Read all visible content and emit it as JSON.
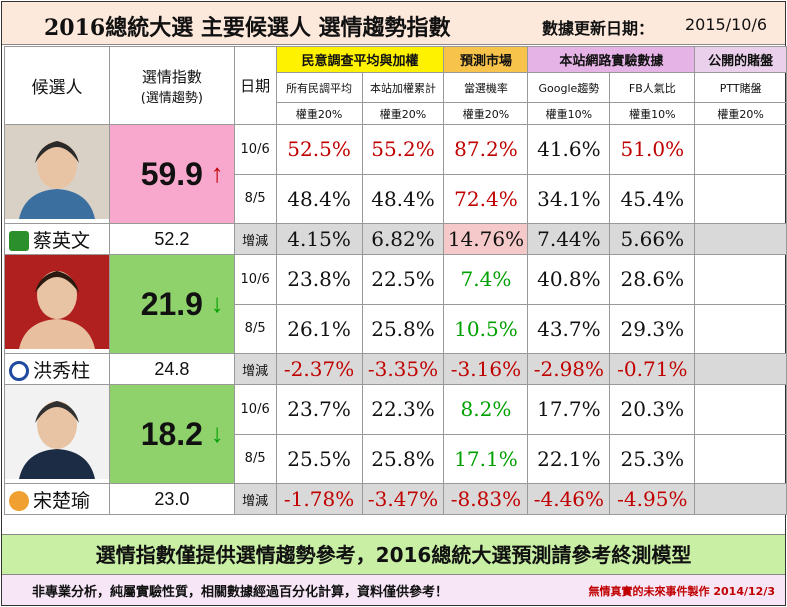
{
  "title": "2016總統大選 主要候選人  選情趨勢指數",
  "update_label": "數據更新日期：",
  "update_date": "2015/10/6",
  "headers": {
    "candidate": "候選人",
    "index": "選情指數",
    "index_sub": "(選情趨勢)",
    "date": "日期",
    "groups": [
      {
        "label": "民意調查平均與加權"
      },
      {
        "label": "預測市場"
      },
      {
        "label": "本站網路實驗數據"
      },
      {
        "label": "公開的賭盤"
      }
    ],
    "columns": [
      "所有民調平均",
      "本站加權累計",
      "當選機率",
      "Google趨勢",
      "FB人氣比",
      "PTT賭盤"
    ],
    "weights": [
      "權重20%",
      "權重20%",
      "權重20%",
      "權重10%",
      "權重10%",
      "權重20%"
    ]
  },
  "chart_data": {
    "type": "table",
    "title": "2016總統大選 主要候選人  選情趨勢指數",
    "columns": [
      "所有民調平均",
      "本站加權累計",
      "當選機率",
      "Google趨勢",
      "FB人氣比",
      "PTT賭盤"
    ],
    "candidates": [
      {
        "name": "蔡英文",
        "index": "59.9",
        "trend": "↑",
        "prev_index": "52.2",
        "rows": [
          {
            "date": "10/6",
            "values": [
              "52.5%",
              "55.2%",
              "87.2%",
              "41.6%",
              "51.0%",
              ""
            ]
          },
          {
            "date": "8/5",
            "values": [
              "48.4%",
              "48.4%",
              "72.4%",
              "34.1%",
              "45.4%",
              ""
            ]
          },
          {
            "date": "增減",
            "values": [
              "4.15%",
              "6.82%",
              "14.76%",
              "7.44%",
              "5.66%",
              ""
            ]
          }
        ]
      },
      {
        "name": "洪秀柱",
        "index": "21.9",
        "trend": "↓",
        "prev_index": "24.8",
        "rows": [
          {
            "date": "10/6",
            "values": [
              "23.8%",
              "22.5%",
              "7.4%",
              "40.8%",
              "28.6%",
              ""
            ]
          },
          {
            "date": "8/5",
            "values": [
              "26.1%",
              "25.8%",
              "10.5%",
              "43.7%",
              "29.3%",
              ""
            ]
          },
          {
            "date": "增減",
            "values": [
              "-2.37%",
              "-3.35%",
              "-3.16%",
              "-2.98%",
              "-0.71%",
              ""
            ]
          }
        ]
      },
      {
        "name": "宋楚瑜",
        "index": "18.2",
        "trend": "↓",
        "prev_index": "23.0",
        "rows": [
          {
            "date": "10/6",
            "values": [
              "23.7%",
              "22.3%",
              "8.2%",
              "17.7%",
              "20.3%",
              ""
            ]
          },
          {
            "date": "8/5",
            "values": [
              "25.5%",
              "25.8%",
              "17.1%",
              "22.1%",
              "25.3%",
              ""
            ]
          },
          {
            "date": "增減",
            "values": [
              "-1.78%",
              "-3.47%",
              "-8.83%",
              "-4.46%",
              "-4.95%",
              ""
            ]
          }
        ]
      }
    ]
  },
  "colors": {
    "up": "#c00000",
    "down": "#00a000",
    "index_pink": "#f9a8cd",
    "index_green": "#8fd16a",
    "title_bg": "#fde9dc",
    "footer_green": "#c9efa5"
  },
  "footer": {
    "note": "選情指數僅提供選情趨勢參考，2016總統大選預測請參考終測模型",
    "disclaimer": "非專業分析，純屬實驗性質，相關數據經過百分化計算，資料僅供參考！",
    "credit": "無情真實的未來事件製作  2014/12/3"
  },
  "icons": [
    "dpp-flag-icon",
    "kmt-emblem-icon",
    "pfp-emblem-icon"
  ]
}
